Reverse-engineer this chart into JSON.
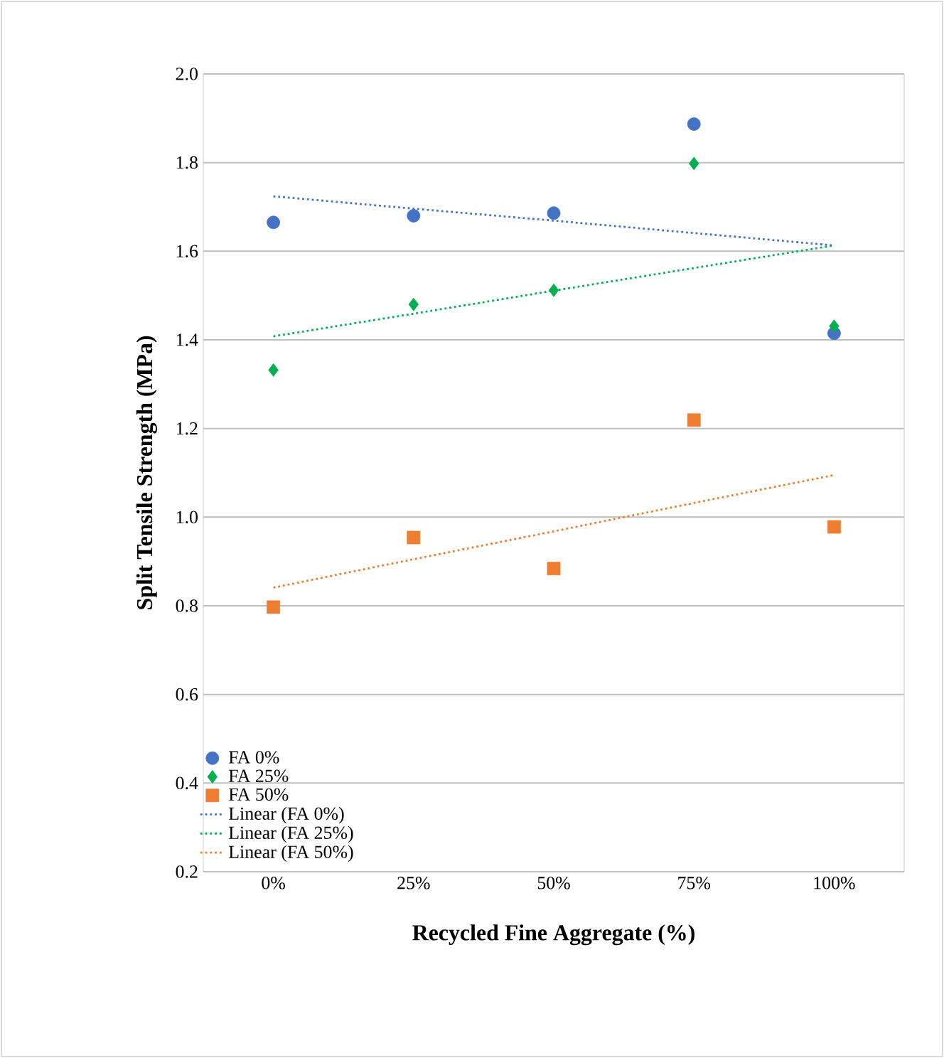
{
  "chart_data": {
    "type": "scatter",
    "xlabel": "Recycled Fine Aggregate (%)",
    "ylabel": "Split Tensile Strength (MPa)",
    "categories": [
      "0%",
      "25%",
      "50%",
      "75%",
      "100%"
    ],
    "series": [
      {
        "name": "FA 0%",
        "color": "#4472c4",
        "marker": "circle",
        "values": [
          1.665,
          1.68,
          1.686,
          1.887,
          1.415
        ]
      },
      {
        "name": "FA 25%",
        "color": "#00b050",
        "marker": "diamond",
        "values": [
          1.332,
          1.48,
          1.512,
          1.798,
          1.431
        ]
      },
      {
        "name": "FA 50%",
        "color": "#ed7d31",
        "marker": "square",
        "values": [
          0.797,
          0.954,
          0.884,
          1.219,
          0.978
        ]
      },
      {
        "name": "Linear (FA 0%)",
        "type": "line",
        "color": "#4472c4",
        "line_style": "dotted",
        "values": [
          1.724,
          1.696,
          1.669,
          1.641,
          1.613
        ]
      },
      {
        "name": "Linear (FA 25%)",
        "type": "line",
        "color": "#00b050",
        "line_style": "dotted",
        "values": [
          1.408,
          1.459,
          1.511,
          1.562,
          1.613
        ]
      },
      {
        "name": "Linear (FA 50%)",
        "type": "line",
        "color": "#ed7d31",
        "line_style": "dotted",
        "values": [
          0.841,
          0.905,
          0.968,
          1.032,
          1.095
        ]
      }
    ],
    "ylim": [
      0.2,
      2.0
    ],
    "yticks": [
      0.2,
      0.4,
      0.6,
      0.8,
      {
        "value": 1.0,
        "label": "1.0"
      },
      1.2,
      1.4,
      1.6,
      1.8,
      {
        "value": 2.0,
        "label": "2.0"
      }
    ],
    "grid": "y",
    "legend": "bottom left"
  }
}
